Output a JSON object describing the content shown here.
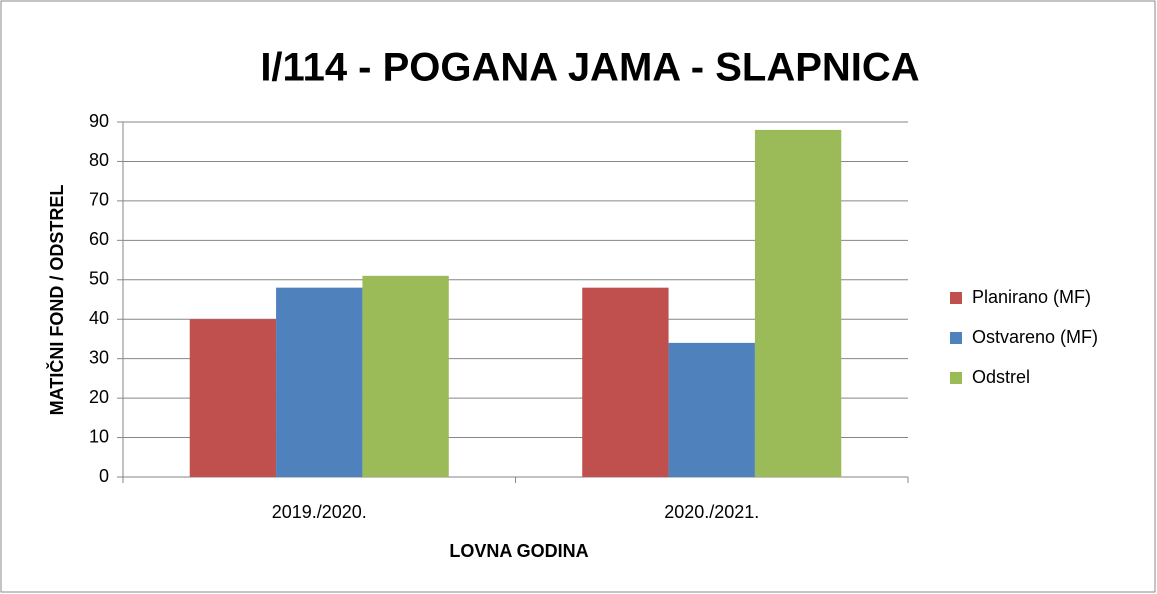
{
  "chart_data": {
    "type": "bar",
    "title": "I/114 - POGANA JAMA - SLAPNICA",
    "x_label": "LOVNA GODINA",
    "y_label": "MATIČNI FOND / ODSTREL",
    "categories": [
      "2019./2020.",
      "2020./2021."
    ],
    "series": [
      {
        "name": "Planirano (MF)",
        "color": "#c0504d",
        "values": [
          40,
          48
        ]
      },
      {
        "name": "Ostvareno (MF)",
        "color": "#4f81bd",
        "values": [
          48,
          34
        ]
      },
      {
        "name": "Odstrel",
        "color": "#9bbb59",
        "values": [
          51,
          88
        ]
      }
    ],
    "ylim": [
      0,
      90
    ],
    "yticks": [
      0,
      10,
      20,
      30,
      40,
      50,
      60,
      70,
      80,
      90
    ],
    "grid": true,
    "legend": "right"
  }
}
